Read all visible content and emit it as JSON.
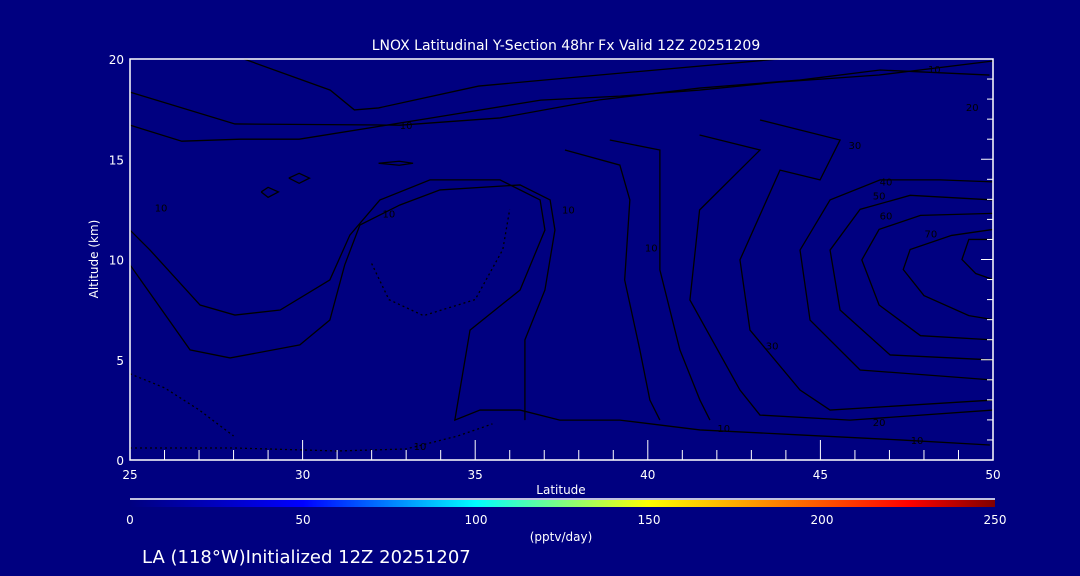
{
  "chart_data": {
    "type": "contour",
    "title": "LNOX Latitudinal Y-Section 48hr  Fx Valid 12Z 20251209",
    "xlabel": "Latitude",
    "ylabel": "Altitude (km)",
    "xlim": [
      25,
      50
    ],
    "ylim": [
      0,
      20
    ],
    "xticks": [
      "25",
      "30",
      "35",
      "40",
      "45",
      "50"
    ],
    "xtick_values": [
      25,
      30,
      35,
      40,
      45,
      50
    ],
    "yticks": [
      "0",
      "5",
      "10",
      "15",
      "20"
    ],
    "ytick_values": [
      0,
      5,
      10,
      15,
      20
    ],
    "colorbar": {
      "label": "(pptv/day)",
      "range": [
        0,
        250
      ],
      "ticks": [
        "0",
        "50",
        "100",
        "150",
        "200",
        "250"
      ],
      "tick_values": [
        0,
        50,
        100,
        150,
        200,
        250
      ],
      "colors": [
        "#000080",
        "#0000ff",
        "#00ffff",
        "#80ff80",
        "#ffff00",
        "#ff8000",
        "#ff0000",
        "#800000"
      ]
    },
    "contours": [
      {
        "level": 10,
        "points": [
          [
            25,
            18.35
          ],
          [
            28.04,
            16.76
          ],
          [
            32.82,
            16.7
          ],
          [
            35.72,
            17.06
          ],
          [
            38.6,
            17.96
          ],
          [
            41.5,
            18.55
          ],
          [
            44.4,
            18.95
          ],
          [
            46.73,
            19.45
          ],
          [
            49.9,
            19.2
          ]
        ]
      },
      {
        "level": 0,
        "points": [
          [
            28.3,
            20
          ],
          [
            30.8,
            18.45
          ],
          [
            31.5,
            17.46
          ],
          [
            32.2,
            17.56
          ],
          [
            35.1,
            18.65
          ],
          [
            38.6,
            19.2
          ],
          [
            43.8,
            20
          ]
        ]
      },
      {
        "level": 20,
        "points": [
          [
            25,
            16.7
          ],
          [
            26.5,
            15.9
          ],
          [
            28.2,
            16
          ],
          [
            29.9,
            16
          ],
          [
            33.7,
            17.05
          ],
          [
            36.9,
            17.95
          ],
          [
            39.2,
            18.15
          ],
          [
            41.5,
            18.45
          ],
          [
            43.8,
            18.85
          ],
          [
            46.7,
            19.2
          ],
          [
            50,
            19.9
          ]
        ]
      },
      {
        "level": 10,
        "points": [
          [
            25,
            11.47
          ],
          [
            25.58,
            10.47
          ],
          [
            27.03,
            7.73
          ],
          [
            28.04,
            7.23
          ],
          [
            29.35,
            7.48
          ],
          [
            30.79,
            8.98
          ],
          [
            31.37,
            11.22
          ],
          [
            32.24,
            12.97
          ],
          [
            33.69,
            13.97
          ],
          [
            35.72,
            13.97
          ],
          [
            36.88,
            12.97
          ],
          [
            37.02,
            11.47
          ],
          [
            36.3,
            8.48
          ],
          [
            34.85,
            6.48
          ],
          [
            34.41,
            1.99
          ],
          [
            35.14,
            2.49
          ],
          [
            36.3,
            2.49
          ],
          [
            37.45,
            1.99
          ],
          [
            39.19,
            1.99
          ],
          [
            41.51,
            1.5
          ],
          [
            44.41,
            1.25
          ],
          [
            47.31,
            1.0
          ],
          [
            49.91,
            0.75
          ]
        ]
      },
      {
        "level": 10,
        "points": [
          [
            25,
            9.73
          ],
          [
            26.74,
            5.49
          ],
          [
            27.9,
            5.09
          ],
          [
            29.92,
            5.74
          ],
          [
            30.79,
            6.98
          ],
          [
            31.22,
            9.73
          ],
          [
            31.66,
            11.72
          ],
          [
            32.82,
            12.72
          ],
          [
            33.98,
            13.47
          ],
          [
            36.3,
            13.72
          ],
          [
            37.17,
            12.97
          ],
          [
            37.31,
            11.47
          ],
          [
            37.02,
            8.48
          ],
          [
            36.44,
            5.99
          ],
          [
            36.44,
            1.99
          ]
        ]
      },
      {
        "level": 10,
        "points": [
          [
            37.6,
            15.46
          ],
          [
            39.19,
            14.71
          ],
          [
            39.48,
            12.97
          ],
          [
            39.33,
            8.98
          ],
          [
            39.77,
            5.49
          ],
          [
            40.06,
            2.99
          ],
          [
            40.35,
            1.99
          ]
        ]
      },
      {
        "level": 20,
        "points": [
          [
            38.9,
            15.96
          ],
          [
            40.35,
            15.46
          ],
          [
            40.35,
            9.48
          ],
          [
            40.93,
            5.49
          ],
          [
            41.51,
            2.99
          ],
          [
            41.8,
            1.99
          ]
        ]
      },
      {
        "level": 20,
        "points": [
          [
            41.5,
            16.21
          ],
          [
            43.25,
            15.46
          ],
          [
            41.5,
            12.47
          ],
          [
            41.22,
            7.98
          ],
          [
            42.67,
            3.49
          ],
          [
            43.25,
            2.24
          ],
          [
            45.86,
            1.99
          ],
          [
            50,
            2.49
          ]
        ]
      },
      {
        "level": 30,
        "points": [
          [
            43.25,
            16.96
          ],
          [
            45.57,
            15.96
          ],
          [
            44.99,
            13.97
          ],
          [
            43.83,
            14.46
          ],
          [
            42.67,
            9.98
          ],
          [
            42.96,
            6.48
          ],
          [
            44.41,
            3.49
          ],
          [
            45.28,
            2.49
          ],
          [
            50,
            2.99
          ]
        ]
      },
      {
        "level": 40,
        "points": [
          [
            50,
            13.87
          ],
          [
            48.47,
            13.97
          ],
          [
            46.73,
            13.97
          ],
          [
            45.28,
            12.97
          ],
          [
            44.41,
            10.47
          ],
          [
            44.7,
            6.98
          ],
          [
            46.15,
            4.49
          ],
          [
            50,
            3.99
          ]
        ]
      },
      {
        "level": 50,
        "points": [
          [
            50,
            12.97
          ],
          [
            47.6,
            13.2
          ],
          [
            46.15,
            12.5
          ],
          [
            45.28,
            10.47
          ],
          [
            45.57,
            7.48
          ],
          [
            47.02,
            5.24
          ],
          [
            50,
            4.99
          ]
        ]
      },
      {
        "level": 60,
        "points": [
          [
            50,
            12.3
          ],
          [
            47.9,
            12.2
          ],
          [
            46.7,
            11.5
          ],
          [
            46.2,
            9.98
          ],
          [
            46.7,
            7.73
          ],
          [
            47.9,
            6.2
          ],
          [
            50,
            5.99
          ]
        ]
      },
      {
        "level": 70,
        "points": [
          [
            50,
            11.5
          ],
          [
            48.8,
            11.2
          ],
          [
            47.6,
            10.5
          ],
          [
            47.4,
            9.5
          ],
          [
            48,
            8.2
          ],
          [
            49.3,
            7.2
          ],
          [
            50,
            7
          ]
        ]
      },
      {
        "level": 80,
        "points": [
          [
            50,
            11
          ],
          [
            49.3,
            11
          ],
          [
            49.1,
            10
          ],
          [
            49.5,
            9.3
          ],
          [
            50,
            9
          ]
        ]
      },
      {
        "level": 0,
        "points": [
          [
            28.8,
            13.37
          ],
          [
            29,
            13.6
          ],
          [
            29.3,
            13.37
          ],
          [
            29,
            13.1
          ],
          [
            28.8,
            13.37
          ]
        ]
      },
      {
        "level": 0,
        "points": [
          [
            29.6,
            14.06
          ],
          [
            29.9,
            14.3
          ],
          [
            30.2,
            14.06
          ],
          [
            29.9,
            13.8
          ],
          [
            29.6,
            14.06
          ]
        ]
      },
      {
        "level": 0,
        "points": [
          [
            32.2,
            14.8
          ],
          [
            32.8,
            14.9
          ],
          [
            33.2,
            14.8
          ],
          [
            32.8,
            14.7
          ],
          [
            32.2,
            14.8
          ]
        ]
      }
    ],
    "dotted_contours": [
      {
        "level": -10,
        "points": [
          [
            25,
            0.6
          ],
          [
            28,
            0.6
          ],
          [
            31,
            0.45
          ],
          [
            33,
            0.55
          ],
          [
            34.5,
            1.2
          ],
          [
            35.5,
            1.8
          ]
        ]
      },
      {
        "level": -10,
        "points": [
          [
            25,
            4.3
          ],
          [
            26,
            3.6
          ],
          [
            27,
            2.5
          ],
          [
            28,
            1.2
          ]
        ]
      },
      {
        "level": -10,
        "points": [
          [
            32,
            9.8
          ],
          [
            32.5,
            8
          ],
          [
            33.5,
            7.2
          ],
          [
            35,
            8
          ],
          [
            35.8,
            10.5
          ],
          [
            36,
            12.5
          ]
        ]
      }
    ],
    "contour_labels": [
      {
        "text": "10",
        "lat": 33.0,
        "alt": 16.7
      },
      {
        "text": "10",
        "lat": 48.3,
        "alt": 19.5
      },
      {
        "text": "20",
        "lat": 49.4,
        "alt": 17.6
      },
      {
        "text": "10",
        "lat": 25.9,
        "alt": 12.6
      },
      {
        "text": "10",
        "lat": 32.5,
        "alt": 12.3
      },
      {
        "text": "10",
        "lat": 37.7,
        "alt": 12.5
      },
      {
        "text": "10",
        "lat": 40.1,
        "alt": 10.6
      },
      {
        "text": "30",
        "lat": 46.0,
        "alt": 15.7
      },
      {
        "text": "40",
        "lat": 46.9,
        "alt": 13.9
      },
      {
        "text": "50",
        "lat": 46.7,
        "alt": 13.2
      },
      {
        "text": "60",
        "lat": 46.9,
        "alt": 12.2
      },
      {
        "text": "70",
        "lat": 48.2,
        "alt": 11.3
      },
      {
        "text": "30",
        "lat": 43.6,
        "alt": 5.7
      },
      {
        "text": "10",
        "lat": 42.2,
        "alt": 1.6
      },
      {
        "text": "20",
        "lat": 46.7,
        "alt": 1.9
      },
      {
        "text": "10",
        "lat": 47.8,
        "alt": 1.0
      },
      {
        "text": "10",
        "lat": 33.4,
        "alt": 0.7
      }
    ]
  },
  "footer": "LA (118°W)Initialized 12Z 20251207"
}
